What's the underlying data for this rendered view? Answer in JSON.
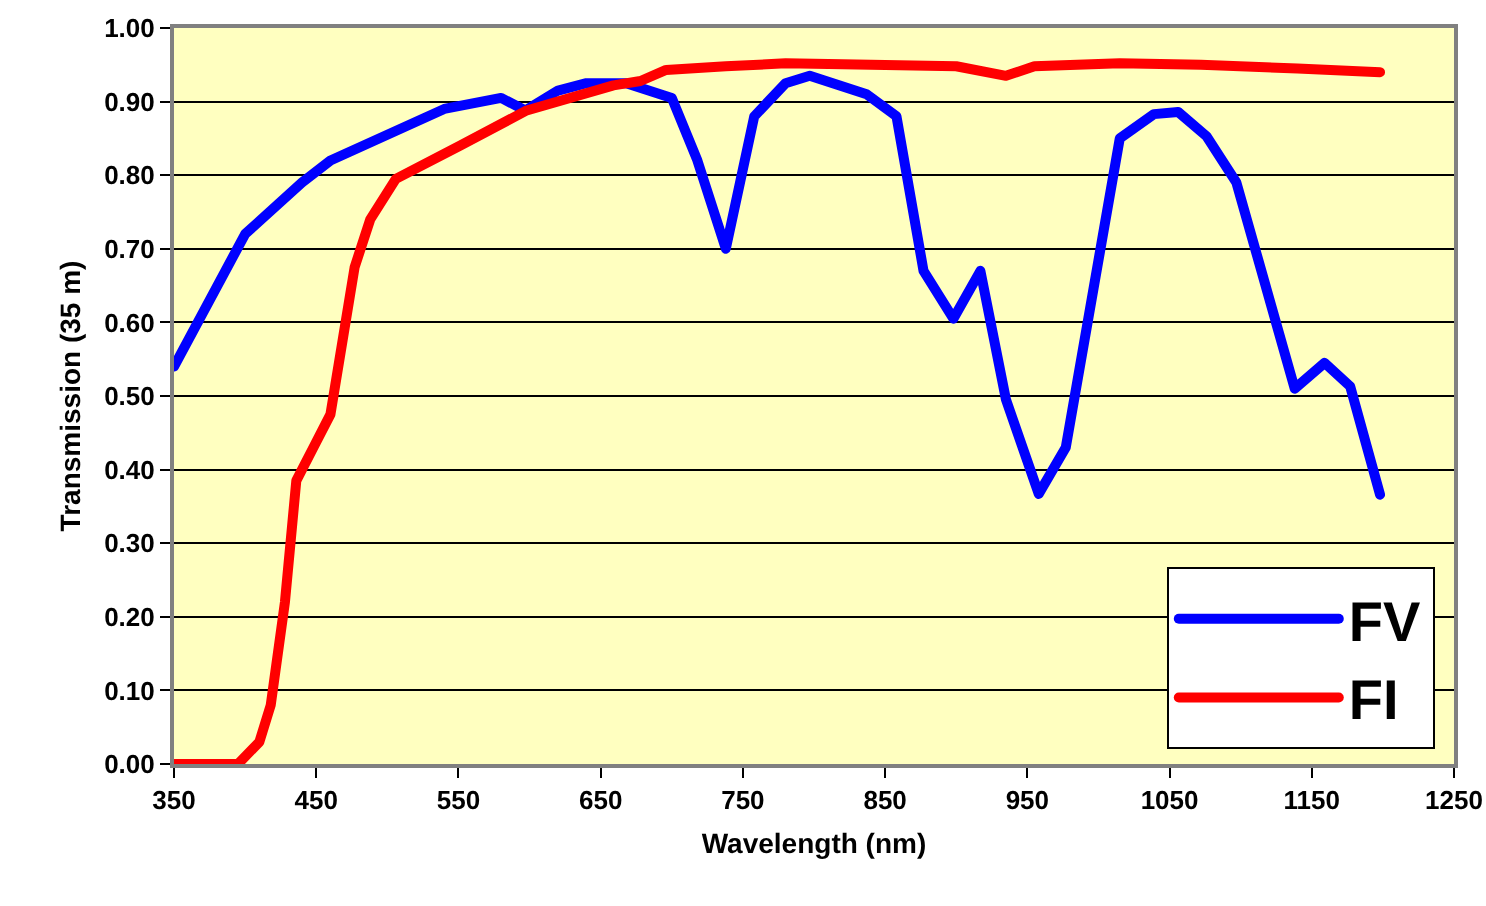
{
  "chart_data": {
    "type": "line",
    "xlabel": "Wavelength (nm)",
    "ylabel": "Transmission (35 m)",
    "xlim": [
      350,
      1250
    ],
    "xticks": [
      350,
      450,
      550,
      650,
      750,
      850,
      950,
      1050,
      1150,
      1250
    ],
    "ylim": [
      0,
      1
    ],
    "yticks": [
      {
        "value": 0,
        "label": "0.00"
      },
      {
        "value": 0.1,
        "label": "0.10"
      },
      {
        "value": 0.2,
        "label": "0.20"
      },
      {
        "value": 0.3,
        "label": "0.30"
      },
      {
        "value": 0.4,
        "label": "0.40"
      },
      {
        "value": 0.5,
        "label": "0.50"
      },
      {
        "value": 0.6,
        "label": "0.60"
      },
      {
        "value": 0.7,
        "label": "0.70"
      },
      {
        "value": 0.8,
        "label": "0.80"
      },
      {
        "value": 0.9,
        "label": "0.90"
      },
      {
        "value": 1,
        "label": "1.00"
      }
    ],
    "grid": "y",
    "legend": "bottom right",
    "marker": "none",
    "line_style": "solid",
    "series": [
      {
        "name": "FV",
        "color": "#0000ff",
        "x": [
          350,
          400,
          440,
          460,
          540,
          580,
          597,
          620,
          640,
          668,
          700,
          718,
          738,
          758,
          780,
          797,
          837,
          858,
          877,
          898,
          917,
          935,
          958,
          977,
          1015,
          1039,
          1056,
          1076,
          1097,
          1138,
          1159,
          1177,
          1198
        ],
        "values": [
          0.54,
          0.72,
          0.79,
          0.82,
          0.89,
          0.905,
          0.888,
          0.915,
          0.925,
          0.925,
          0.905,
          0.82,
          0.7,
          0.88,
          0.925,
          0.935,
          0.91,
          0.88,
          0.67,
          0.605,
          0.67,
          0.495,
          0.367,
          0.43,
          0.85,
          0.883,
          0.886,
          0.853,
          0.79,
          0.51,
          0.545,
          0.513,
          0.366
        ]
      },
      {
        "name": "FI",
        "color": "#ff0000",
        "x": [
          350,
          380,
          395,
          410,
          418,
          428,
          436,
          448,
          460,
          477,
          488,
          506,
          551,
          598,
          659,
          678,
          696,
          738,
          780,
          840,
          900,
          935,
          955,
          1015,
          1072,
          1140,
          1198
        ],
        "values": [
          0,
          0,
          0,
          0.03,
          0.08,
          0.22,
          0.385,
          0.43,
          0.475,
          0.675,
          0.74,
          0.795,
          0.84,
          0.888,
          0.922,
          0.928,
          0.943,
          0.948,
          0.952,
          0.95,
          0.948,
          0.935,
          0.948,
          0.952,
          0.95,
          0.945,
          0.94
        ]
      }
    ]
  }
}
